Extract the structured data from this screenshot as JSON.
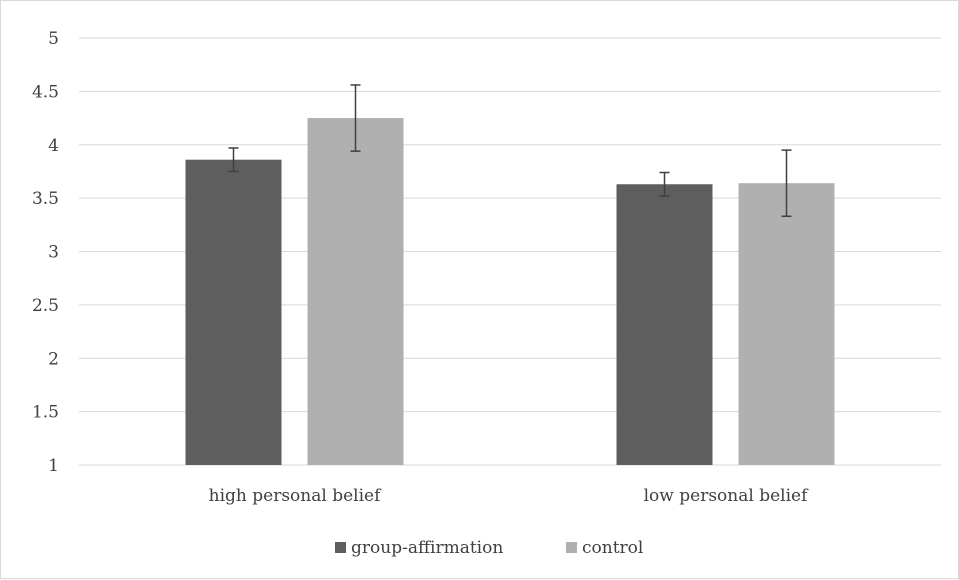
{
  "chart_data": {
    "type": "bar",
    "categories": [
      "high personal belief",
      "low personal belief"
    ],
    "series": [
      {
        "name": "group-affirmation",
        "values": [
          3.86,
          3.63
        ],
        "error": [
          0.11,
          0.11
        ],
        "color": "#5e5e5e"
      },
      {
        "name": "control",
        "values": [
          4.25,
          3.64
        ],
        "error": [
          0.31,
          0.31
        ],
        "color": "#b0b0b0"
      }
    ],
    "ylim": [
      1,
      5
    ],
    "yticks": [
      "1",
      "1.5",
      "2",
      "2.5",
      "3",
      "3.5",
      "4",
      "4.5",
      "5"
    ],
    "grid": true,
    "legend_position": "bottom",
    "gridline_color": "#d9d9d9",
    "errorbar_color": "#404040"
  }
}
